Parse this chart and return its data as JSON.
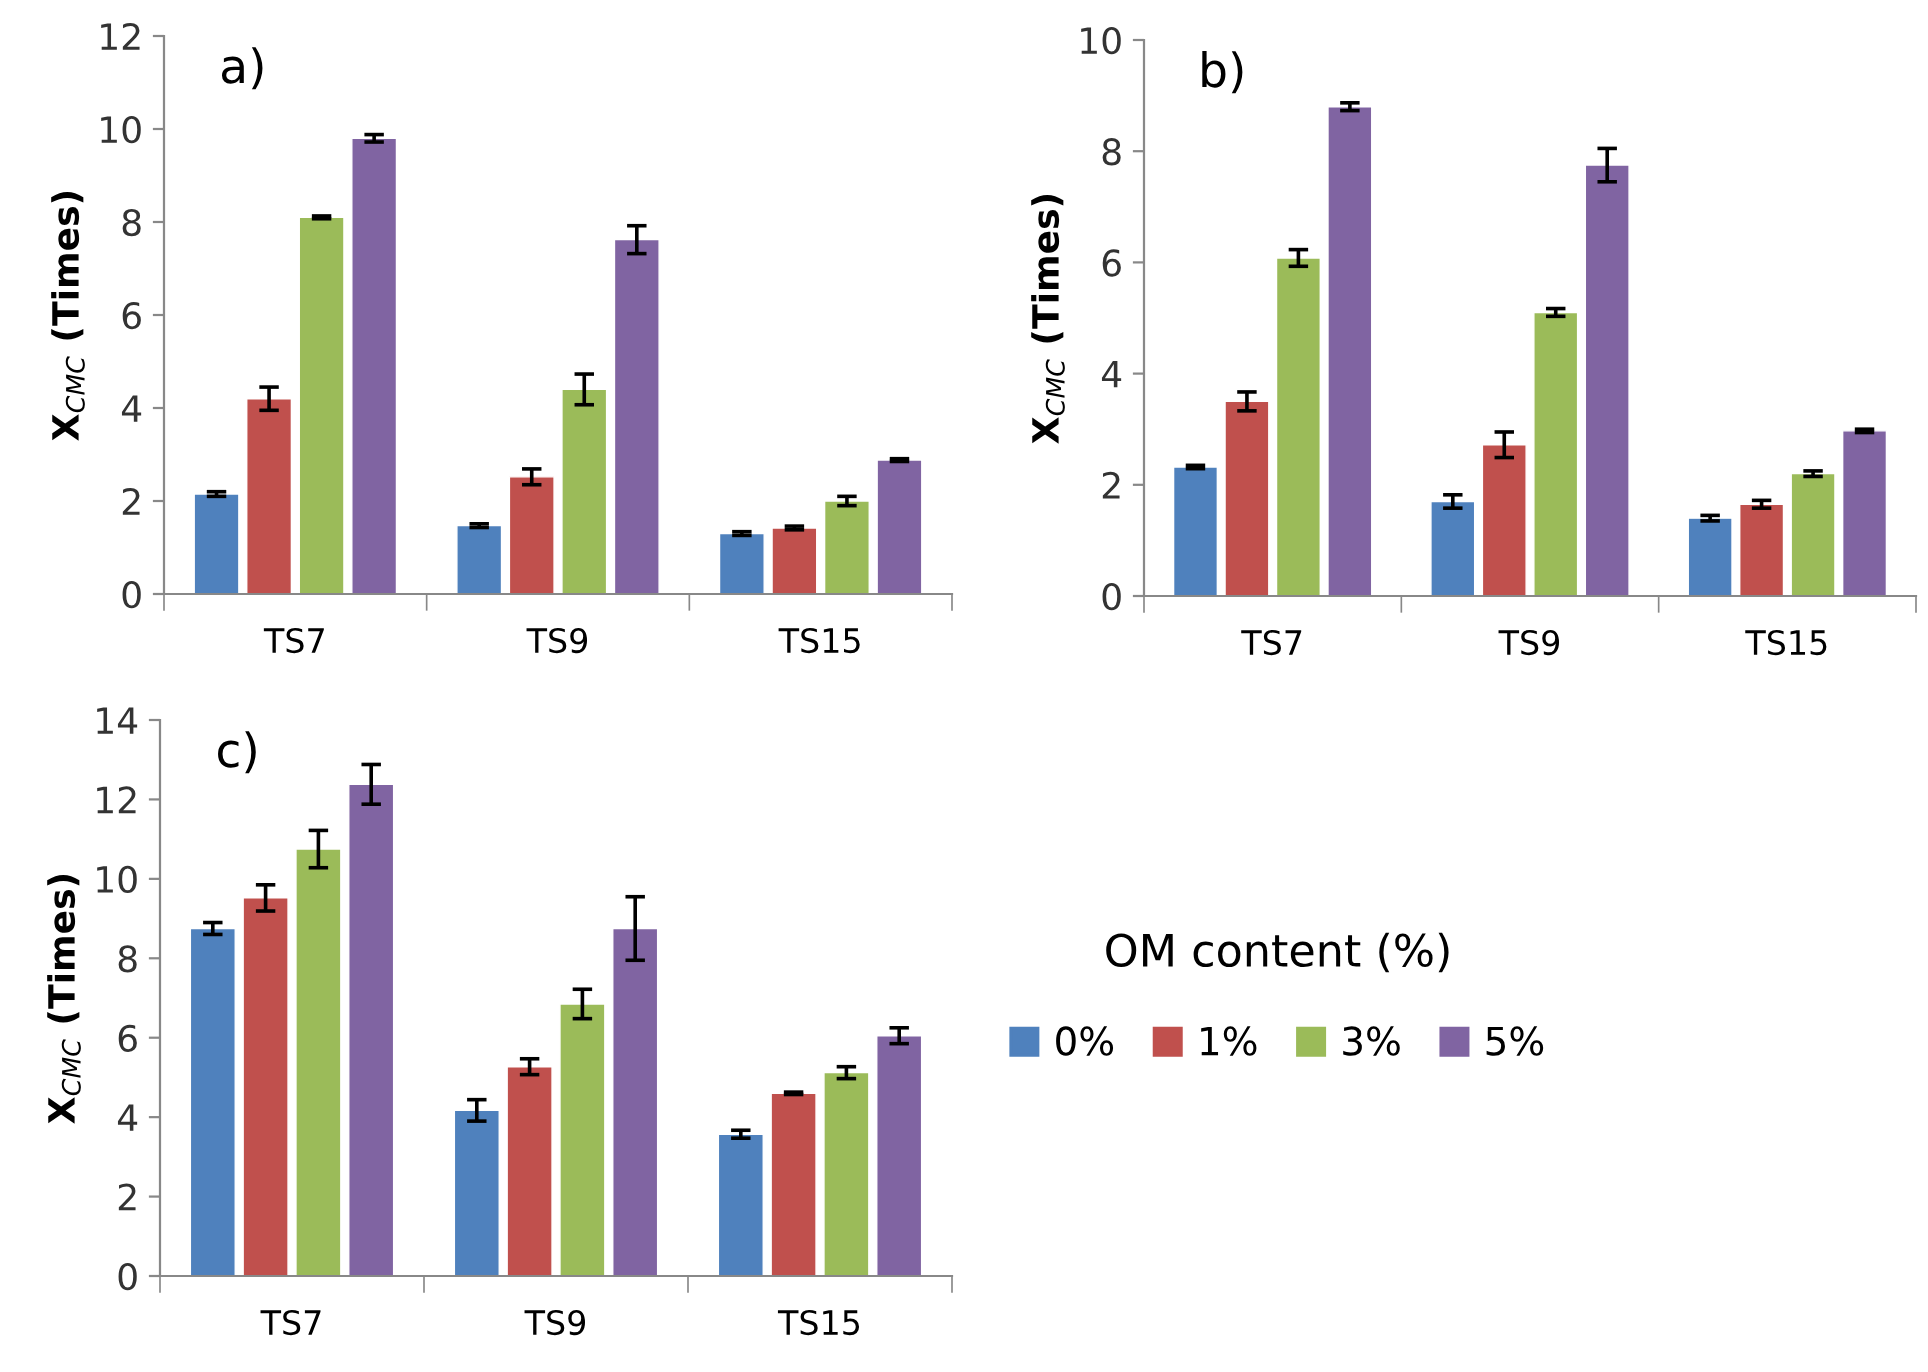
{
  "chart_data": [
    {
      "type": "bar",
      "title": "a)",
      "ylabel": "X$_{CMC}$ (Times)",
      "categories": [
        "TS7",
        "TS9",
        "TS15"
      ],
      "ylim": [
        0,
        12
      ],
      "yticks": [
        0,
        2,
        4,
        6,
        8,
        10,
        12
      ],
      "grid": false,
      "legend": false,
      "series": [
        {
          "color": "#4f81bd",
          "values": [
            2.15,
            1.47,
            1.3
          ],
          "errors": [
            0.05,
            0.04,
            0.04
          ]
        },
        {
          "color": "#c0504d",
          "values": [
            4.2,
            2.52,
            1.42
          ],
          "errors": [
            0.25,
            0.17,
            0.04
          ]
        },
        {
          "color": "#9bbb59",
          "values": [
            8.1,
            4.4,
            2.0
          ],
          "errors": [
            0.03,
            0.33,
            0.1
          ]
        },
        {
          "color": "#8064a2",
          "values": [
            9.8,
            7.62,
            2.88
          ],
          "errors": [
            0.08,
            0.3,
            0.03
          ]
        }
      ]
    },
    {
      "type": "bar",
      "title": "b)",
      "ylabel": "X$_{CMC}$ (Times)",
      "categories": [
        "TS7",
        "TS9",
        "TS15"
      ],
      "ylim": [
        0,
        10
      ],
      "yticks": [
        0,
        2,
        4,
        6,
        8,
        10
      ],
      "grid": false,
      "legend": false,
      "series": [
        {
          "color": "#4f81bd",
          "values": [
            2.32,
            1.7,
            1.4
          ],
          "errors": [
            0.03,
            0.12,
            0.05
          ]
        },
        {
          "color": "#c0504d",
          "values": [
            3.5,
            2.72,
            1.65
          ],
          "errors": [
            0.17,
            0.23,
            0.07
          ]
        },
        {
          "color": "#9bbb59",
          "values": [
            6.08,
            5.1,
            2.2
          ],
          "errors": [
            0.15,
            0.07,
            0.05
          ]
        },
        {
          "color": "#8064a2",
          "values": [
            8.8,
            7.75,
            2.97
          ],
          "errors": [
            0.07,
            0.3,
            0.03
          ]
        }
      ]
    },
    {
      "type": "bar",
      "title": "c)",
      "ylabel": "X$_{CMC}$ (Times)",
      "categories": [
        "TS7",
        "TS9",
        "TS15"
      ],
      "ylim": [
        0,
        14
      ],
      "yticks": [
        0,
        2,
        4,
        6,
        8,
        10,
        12,
        14
      ],
      "grid": false,
      "legend": "right",
      "legend_title": "OM content (%)",
      "series": [
        {
          "name": "0%",
          "color": "#4f81bd",
          "values": [
            8.75,
            4.17,
            3.57
          ],
          "errors": [
            0.15,
            0.27,
            0.1
          ]
        },
        {
          "name": "1%",
          "color": "#c0504d",
          "values": [
            9.52,
            5.27,
            4.6
          ],
          "errors": [
            0.33,
            0.2,
            0.03
          ]
        },
        {
          "name": "3%",
          "color": "#9bbb59",
          "values": [
            10.75,
            6.85,
            5.12
          ],
          "errors": [
            0.47,
            0.37,
            0.15
          ]
        },
        {
          "name": "5%",
          "color": "#8064a2",
          "values": [
            12.38,
            8.75,
            6.05
          ],
          "errors": [
            0.5,
            0.8,
            0.2
          ]
        }
      ]
    }
  ]
}
